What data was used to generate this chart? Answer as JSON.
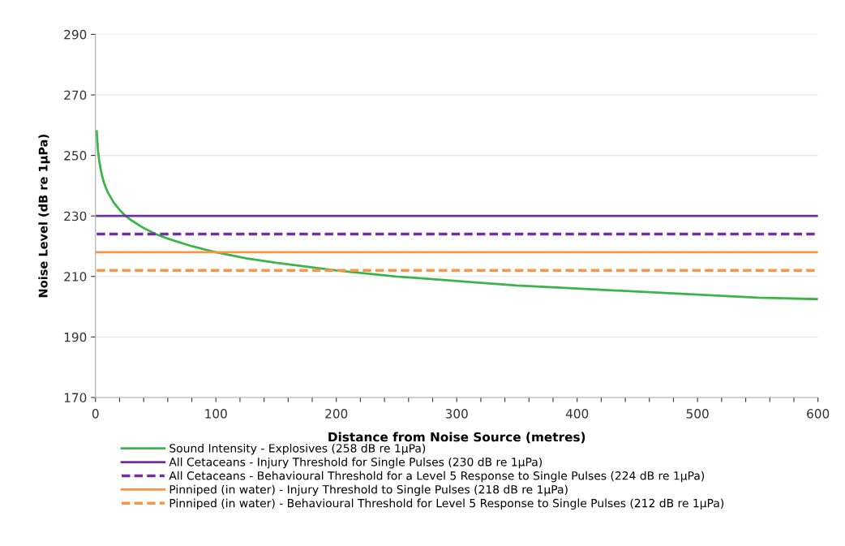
{
  "chart_data": {
    "type": "line",
    "xlabel": "Distance from Noise Source (metres)",
    "ylabel": "Noise Level (dB re 1µPa)",
    "xlim": [
      0,
      600
    ],
    "ylim": [
      170,
      290
    ],
    "xticks": [
      0,
      {
        "value": 20,
        "label": null
      },
      {
        "value": 40,
        "label": null
      },
      {
        "value": 60,
        "label": null
      },
      {
        "value": 80,
        "label": null
      },
      100,
      {
        "value": 120,
        "label": null
      },
      {
        "value": 140,
        "label": null
      },
      {
        "value": 160,
        "label": null
      },
      {
        "value": 180,
        "label": null
      },
      200,
      {
        "value": 220,
        "label": null
      },
      {
        "value": 240,
        "label": null
      },
      {
        "value": 260,
        "label": null
      },
      {
        "value": 280,
        "label": null
      },
      300,
      {
        "value": 320,
        "label": null
      },
      {
        "value": 340,
        "label": null
      },
      {
        "value": 360,
        "label": null
      },
      {
        "value": 380,
        "label": null
      },
      400,
      {
        "value": 420,
        "label": null
      },
      {
        "value": 440,
        "label": null
      },
      {
        "value": 460,
        "label": null
      },
      {
        "value": 480,
        "label": null
      },
      500,
      {
        "value": 520,
        "label": null
      },
      {
        "value": 540,
        "label": null
      },
      {
        "value": 560,
        "label": null
      },
      {
        "value": 580,
        "label": null
      },
      600
    ],
    "yticks": [
      170,
      190,
      210,
      230,
      250,
      270,
      290
    ],
    "grid": "y",
    "legend": "bottom",
    "series": [
      {
        "name": "Sound Intensity - Explosives (258 dB re 1µPa)",
        "color": "#3cb44b",
        "line_style": "solid",
        "x": [
          1,
          2,
          3,
          5,
          7,
          10,
          15,
          20,
          25,
          30,
          40,
          50,
          60,
          80,
          100,
          125,
          150,
          200,
          250,
          300,
          350,
          400,
          450,
          500,
          550,
          600
        ],
        "values": [
          258,
          252,
          248.5,
          244,
          241,
          238,
          234.5,
          232,
          230,
          228.5,
          226,
          224,
          222.5,
          220,
          218,
          216,
          214.5,
          212,
          210,
          208.5,
          207,
          206,
          205,
          204,
          203,
          202.5
        ]
      },
      {
        "name": "All Cetaceans - Injury Threshold for Single Pulses (230 dB re 1µPa)",
        "color": "#7030a0",
        "line_style": "solid",
        "x": [
          1,
          600
        ],
        "values": [
          230,
          230
        ]
      },
      {
        "name": "All Cetaceans - Behavioural Threshold for a Level 5 Response to Single Pulses (224 dB re 1µPa)",
        "color": "#7030a0",
        "line_style": "dashed",
        "x": [
          1,
          600
        ],
        "values": [
          224,
          224
        ]
      },
      {
        "name": "Pinniped (in water) - Injury Threshold to Single Pulses (218 dB re 1µPa)",
        "color": "#f79646",
        "line_style": "solid",
        "x": [
          1,
          600
        ],
        "values": [
          218,
          218
        ]
      },
      {
        "name": "Pinniped (in water) - Behavioural Threshold for Level 5 Response to Single Pulses (212 dB re 1µPa)",
        "color": "#f79646",
        "line_style": "dashed",
        "x": [
          1,
          600
        ],
        "values": [
          212,
          212
        ]
      }
    ]
  }
}
